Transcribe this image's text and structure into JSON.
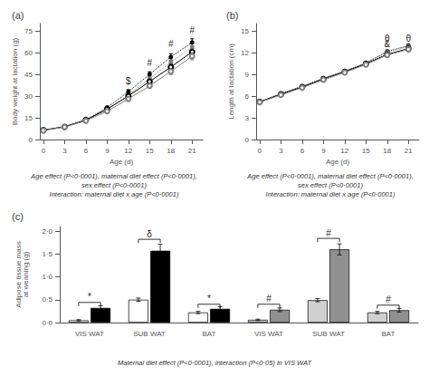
{
  "chart_data": [
    {
      "type": "line",
      "title": "(a)",
      "xlabel": "Age (d)",
      "ylabel": "Body weight at lactation (g)",
      "x": [
        0,
        3,
        6,
        9,
        12,
        15,
        18,
        21
      ],
      "series": [
        {
          "color": "black",
          "line_style": "dotted",
          "marker": "circle",
          "values": [
            6.5,
            9.0,
            13.5,
            22.0,
            33.0,
            45.0,
            57.0,
            67.0
          ],
          "errors": [
            0.2,
            0.4,
            0.6,
            1.0,
            1.4,
            1.8,
            2.2,
            2.5
          ]
        },
        {
          "color": "gray",
          "line_style": "dotted",
          "marker": "circle",
          "values": [
            6.3,
            8.8,
            13.0,
            20.5,
            30.5,
            42.0,
            53.5,
            63.5
          ],
          "errors": [
            0.2,
            0.4,
            0.6,
            1.0,
            1.4,
            1.8,
            2.2,
            2.5
          ]
        },
        {
          "color": "black",
          "line_style": "solid",
          "marker": "emptyCircle",
          "values": [
            6.5,
            8.8,
            13.5,
            21.0,
            30.0,
            40.0,
            50.0,
            60.5
          ],
          "errors": [
            0.2,
            0.4,
            0.6,
            1.0,
            1.4,
            1.8,
            2.2,
            2.5
          ]
        },
        {
          "color": "gray",
          "line_style": "solid",
          "marker": "emptyCircle",
          "values": [
            6.3,
            8.6,
            13.0,
            19.5,
            28.0,
            37.0,
            47.0,
            57.5
          ],
          "errors": [
            0.2,
            0.4,
            0.6,
            1.0,
            1.4,
            1.8,
            2.2,
            2.5
          ]
        }
      ],
      "xlim": [
        -0.5,
        22.5
      ],
      "xticks": [
        0,
        3,
        6,
        9,
        12,
        15,
        18,
        21
      ],
      "ylim": [
        0,
        80
      ],
      "yticks": [
        0,
        15,
        30,
        45,
        60,
        75
      ],
      "grid": false,
      "annotations": [
        {
          "text": "$",
          "x": 12,
          "y": 37
        },
        {
          "text": "#",
          "x": 15,
          "y": 50
        },
        {
          "text": "#",
          "x": 18,
          "y": 63
        },
        {
          "text": "#",
          "x": 21,
          "y": 72
        }
      ],
      "notes": [
        "Age effect (P<0·0001), maternal diet effect (P<0·0001),",
        "sex effect (P<0·0001)",
        "Interaction: maternal diet x age (P<0·0001)"
      ]
    },
    {
      "type": "line",
      "title": "(b)",
      "xlabel": "Age (d)",
      "ylabel": "Length at lactation (cm)",
      "x": [
        0,
        3,
        6,
        9,
        12,
        15,
        18,
        21
      ],
      "series": [
        {
          "color": "black",
          "line_style": "dotted",
          "marker": "circle",
          "values": [
            5.2,
            6.35,
            7.35,
            8.45,
            9.45,
            10.55,
            12.15,
            12.95
          ],
          "errors": [
            0.12,
            0.1,
            0.1,
            0.1,
            0.1,
            0.1,
            0.2,
            0.2
          ]
        },
        {
          "color": "gray",
          "line_style": "dotted",
          "marker": "circle",
          "values": [
            5.15,
            6.25,
            7.25,
            8.35,
            9.35,
            10.45,
            12.05,
            12.85
          ],
          "errors": [
            0.12,
            0.1,
            0.1,
            0.1,
            0.1,
            0.1,
            0.2,
            0.2
          ]
        },
        {
          "color": "black",
          "line_style": "solid",
          "marker": "emptyCircle",
          "values": [
            5.2,
            6.25,
            7.25,
            8.35,
            9.35,
            10.45,
            11.75,
            12.55
          ],
          "errors": [
            0.12,
            0.1,
            0.1,
            0.1,
            0.1,
            0.1,
            0.2,
            0.2
          ]
        },
        {
          "color": "gray",
          "line_style": "solid",
          "marker": "emptyCircle",
          "values": [
            5.15,
            6.15,
            7.15,
            8.25,
            9.25,
            10.35,
            11.65,
            12.45
          ],
          "errors": [
            0.12,
            0.1,
            0.1,
            0.1,
            0.1,
            0.1,
            0.2,
            0.2
          ]
        }
      ],
      "xlim": [
        -0.5,
        22.5
      ],
      "xticks": [
        0,
        3,
        6,
        9,
        12,
        15,
        18,
        21
      ],
      "ylim": [
        0,
        16
      ],
      "yticks": [
        0,
        3,
        6,
        9,
        12,
        15
      ],
      "grid": false,
      "annotations": [
        {
          "text": "&",
          "x": 18,
          "y": 12.6
        },
        {
          "text": "θ",
          "x": 18,
          "y": 13.35
        },
        {
          "text": "θ",
          "x": 21,
          "y": 13.35
        }
      ],
      "notes": [
        "Age effect (P<0·0001), maternal diet effect (P<0·0001),",
        "sex effect (P<0·0001)",
        "Interaction: maternal diet x age (P<0·0001)"
      ]
    },
    {
      "type": "bar",
      "title": "(c)",
      "ylabel": "Adipose tissue mass\nat weaning (g)",
      "categories": [
        "VIS WAT",
        "SUB WAT",
        "BAT",
        "VIS WAT",
        "SUB WAT",
        "BAT"
      ],
      "series": [
        {
          "colors": [
            "white",
            "white",
            "white",
            "#d0d0d0",
            "#d0d0d0",
            "#d0d0d0"
          ],
          "values": [
            0.05,
            0.5,
            0.22,
            0.06,
            0.49,
            0.22
          ],
          "errors": [
            0.015,
            0.035,
            0.025,
            0.015,
            0.035,
            0.025
          ]
        },
        {
          "colors": [
            "black",
            "black",
            "black",
            "#909090",
            "#909090",
            "#909090"
          ],
          "values": [
            0.32,
            1.57,
            0.3,
            0.28,
            1.6,
            0.27
          ],
          "errors": [
            0.05,
            0.14,
            0.05,
            0.04,
            0.12,
            0.04
          ]
        }
      ],
      "ylim": [
        0,
        2.1
      ],
      "yticks": [
        {
          "value": 0.0,
          "label": "0·0"
        },
        {
          "value": 0.5,
          "label": "0·5"
        },
        {
          "value": 1.0,
          "label": "1·0"
        },
        {
          "value": 1.5,
          "label": "1·5"
        },
        {
          "value": 2.0,
          "label": "2·0"
        }
      ],
      "grid": false,
      "brackets": [
        {
          "y": 0.44,
          "text": "*"
        },
        {
          "y": 1.82,
          "text": "δ"
        },
        {
          "y": 0.4,
          "text": "*"
        },
        {
          "y": 0.4,
          "text": "#"
        },
        {
          "y": 1.84,
          "text": "#"
        },
        {
          "y": 0.38,
          "text": "#"
        }
      ],
      "notes": [
        "Maternal diet effect (P<0·0001), interaction (P<0·05) in VIS WAT"
      ]
    }
  ]
}
